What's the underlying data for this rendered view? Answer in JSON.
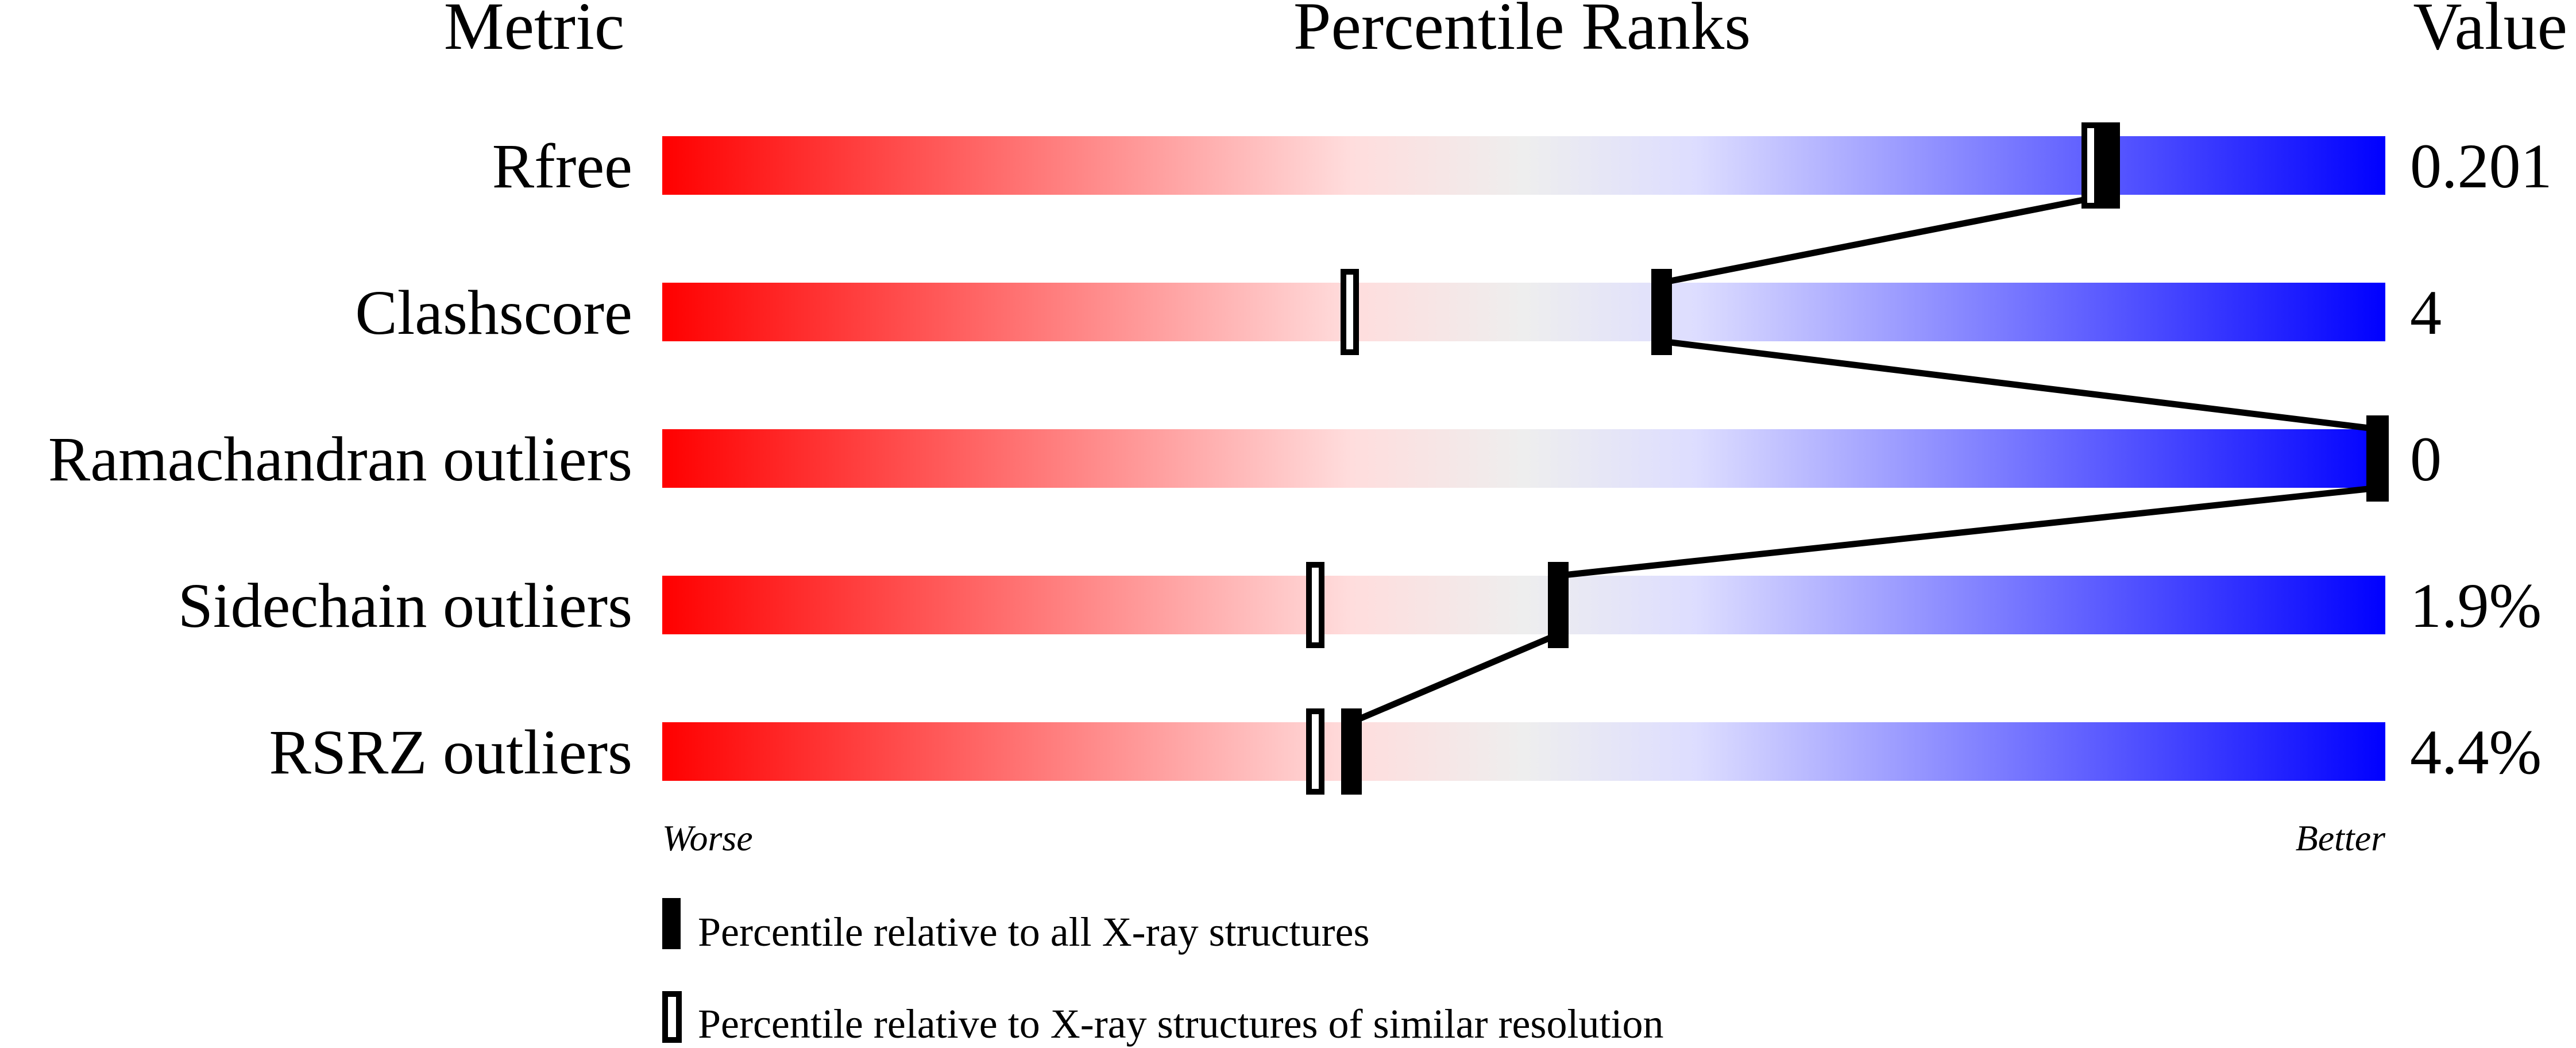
{
  "chart_data": {
    "type": "percentile-slider",
    "headers": {
      "metric": "Metric",
      "ranks": "Percentile Ranks",
      "value": "Value"
    },
    "xlim": [
      0,
      100
    ],
    "axis_labels": {
      "left": "Worse",
      "right": "Better"
    },
    "gradient_colors": [
      "#ff0000",
      "#ffdddd",
      "#eeeeee",
      "#ddddff",
      "#0000ff"
    ],
    "metrics": [
      {
        "name": "Rfree",
        "value": "0.201",
        "percentile_all": 84,
        "percentile_similar": 83
      },
      {
        "name": "Clashscore",
        "value": "4",
        "percentile_all": 58,
        "percentile_similar": 40
      },
      {
        "name": "Ramachandran outliers",
        "value": "0",
        "percentile_all": 100,
        "percentile_similar": 100
      },
      {
        "name": "Sidechain outliers",
        "value": "1.9%",
        "percentile_all": 52,
        "percentile_similar": 38
      },
      {
        "name": "RSRZ outliers",
        "value": "4.4%",
        "percentile_all": 40,
        "percentile_similar": 38
      }
    ],
    "legend": [
      {
        "marker": "filled",
        "label": "Percentile relative to all X-ray structures"
      },
      {
        "marker": "open",
        "label": "Percentile relative to X-ray structures of similar resolution"
      }
    ]
  }
}
